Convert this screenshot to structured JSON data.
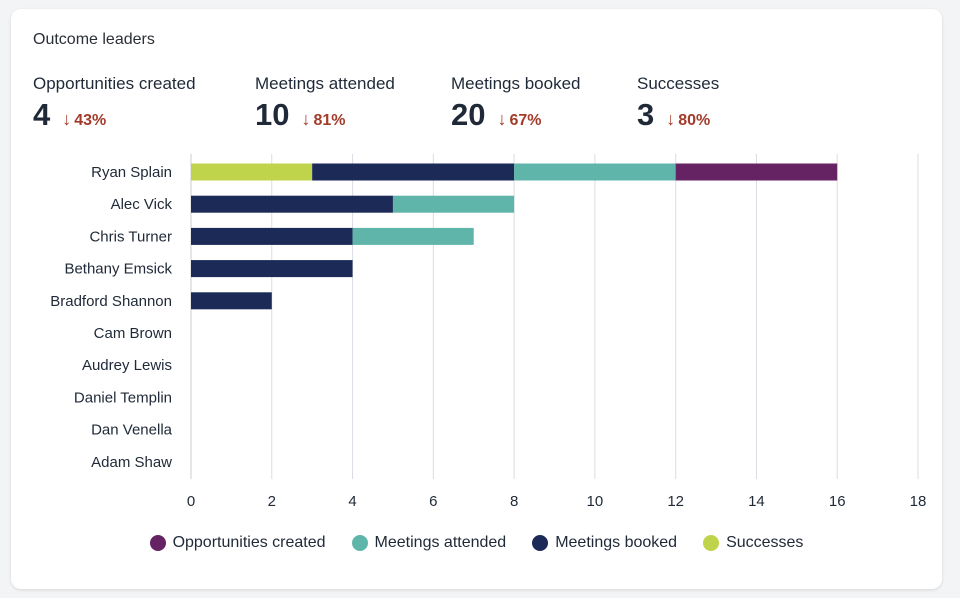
{
  "card": {
    "title": "Outcome leaders"
  },
  "kpis": [
    {
      "label": "Opportunities created",
      "value": "4",
      "change": "43%",
      "direction": "down",
      "arrow_icon": "↓"
    },
    {
      "label": "Meetings attended",
      "value": "10",
      "change": "81%",
      "direction": "down",
      "arrow_icon": "↓"
    },
    {
      "label": "Meetings booked",
      "value": "20",
      "change": "67%",
      "direction": "down",
      "arrow_icon": "↓"
    },
    {
      "label": "Successes",
      "value": "3",
      "change": "80%",
      "direction": "down",
      "arrow_icon": "↓"
    }
  ],
  "chart_data": {
    "type": "bar",
    "orientation": "horizontal",
    "stacked": true,
    "categories": [
      "Ryan Splain",
      "Alec Vick",
      "Chris Turner",
      "Bethany Emsick",
      "Bradford Shannon",
      "Cam Brown",
      "Audrey Lewis",
      "Daniel Templin",
      "Dan Venella",
      "Adam Shaw"
    ],
    "series": [
      {
        "name": "Successes",
        "color": "#bfd44a",
        "values": [
          3,
          0,
          0,
          0,
          0,
          0,
          0,
          0,
          0,
          0
        ]
      },
      {
        "name": "Meetings booked",
        "color": "#1b2a56",
        "values": [
          5,
          5,
          4,
          4,
          2,
          0,
          0,
          0,
          0,
          0
        ]
      },
      {
        "name": "Meetings attended",
        "color": "#5fb5a9",
        "values": [
          4,
          3,
          3,
          0,
          0,
          0,
          0,
          0,
          0,
          0
        ]
      },
      {
        "name": "Opportunities created",
        "color": "#652364",
        "values": [
          4,
          0,
          0,
          0,
          0,
          0,
          0,
          0,
          0,
          0
        ]
      }
    ],
    "xlim": [
      0,
      18
    ],
    "xticks": [
      "0",
      "2",
      "4",
      "6",
      "8",
      "10",
      "12",
      "14",
      "16",
      "18"
    ],
    "grid": true,
    "legend_position": "bottom",
    "legend": [
      {
        "name": "Opportunities created",
        "color": "#652364"
      },
      {
        "name": "Meetings attended",
        "color": "#5fb5a9"
      },
      {
        "name": "Meetings booked",
        "color": "#1b2a56"
      },
      {
        "name": "Successes",
        "color": "#bfd44a"
      }
    ]
  }
}
